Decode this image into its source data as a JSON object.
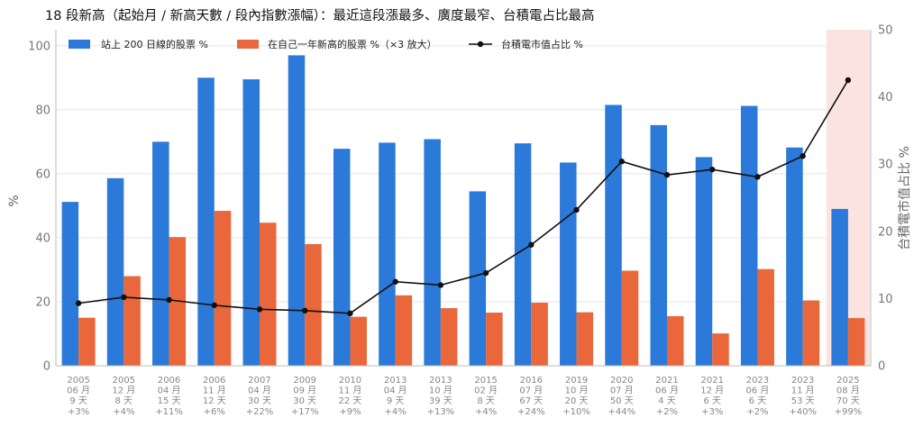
{
  "chart_data": {
    "type": "bar",
    "title": "18 段新高（起始月 / 新高天數 / 段內指數漲幅）：最近這段漲最多、廣度最窄、台積電占比最高",
    "ylabel": "%",
    "y2label": "台積電市值占比 %",
    "ylim": [
      0,
      105
    ],
    "y2lim": [
      0,
      50
    ],
    "yticks": [
      0,
      20,
      40,
      60,
      80,
      100
    ],
    "y2ticks": [
      0,
      10,
      20,
      30,
      40,
      50
    ],
    "grid": "horizontal",
    "legend_position": "top-left",
    "categories": [
      [
        "2005",
        "06 月",
        "9 天",
        "+3%"
      ],
      [
        "2005",
        "12 月",
        "8 天",
        "+4%"
      ],
      [
        "2006",
        "04 月",
        "15 天",
        "+11%"
      ],
      [
        "2006",
        "11 月",
        "12 天",
        "+6%"
      ],
      [
        "2007",
        "04 月",
        "30 天",
        "+22%"
      ],
      [
        "2009",
        "09 月",
        "30 天",
        "+17%"
      ],
      [
        "2010",
        "11 月",
        "22 天",
        "+9%"
      ],
      [
        "2013",
        "04 月",
        "9 天",
        "+4%"
      ],
      [
        "2013",
        "10 月",
        "39 天",
        "+13%"
      ],
      [
        "2015",
        "02 月",
        "8 天",
        "+4%"
      ],
      [
        "2016",
        "07 月",
        "67 天",
        "+24%"
      ],
      [
        "2019",
        "10 月",
        "20 天",
        "+10%"
      ],
      [
        "2020",
        "07 月",
        "50 天",
        "+44%"
      ],
      [
        "2021",
        "06 月",
        "4 天",
        "+2%"
      ],
      [
        "2021",
        "12 月",
        "6 天",
        "+3%"
      ],
      [
        "2023",
        "06 月",
        "6 天",
        "+2%"
      ],
      [
        "2023",
        "11 月",
        "53 天",
        "+40%"
      ],
      [
        "2025",
        "08 月",
        "70 天",
        "+99%"
      ]
    ],
    "series": [
      {
        "name": "站上 200 日線的股票 %",
        "type": "bar",
        "axis": "left",
        "color": "#2b79d9",
        "values": [
          51.2,
          58.6,
          70.0,
          90.0,
          89.5,
          97.0,
          67.8,
          69.7,
          70.8,
          54.5,
          69.5,
          63.5,
          81.5,
          75.2,
          65.2,
          81.2,
          68.2,
          49.0
        ]
      },
      {
        "name": "在自己一年新高的股票 %（×3 放大）",
        "type": "bar",
        "axis": "left",
        "color": "#e9673a",
        "values": [
          15.0,
          28.0,
          40.2,
          48.4,
          44.7,
          38.0,
          15.3,
          22.0,
          18.0,
          16.6,
          19.7,
          16.7,
          29.7,
          15.5,
          10.1,
          30.2,
          20.4,
          14.9
        ]
      },
      {
        "name": "台積電市值占比 %",
        "type": "line",
        "axis": "right",
        "color": "#111111",
        "values": [
          9.3,
          10.2,
          9.8,
          9.0,
          8.4,
          8.2,
          7.8,
          12.5,
          12.0,
          13.8,
          18.0,
          23.2,
          30.4,
          28.4,
          29.2,
          28.1,
          31.2,
          42.5
        ]
      }
    ],
    "highlight_index": 17,
    "highlight_color": "#fbe4df"
  }
}
